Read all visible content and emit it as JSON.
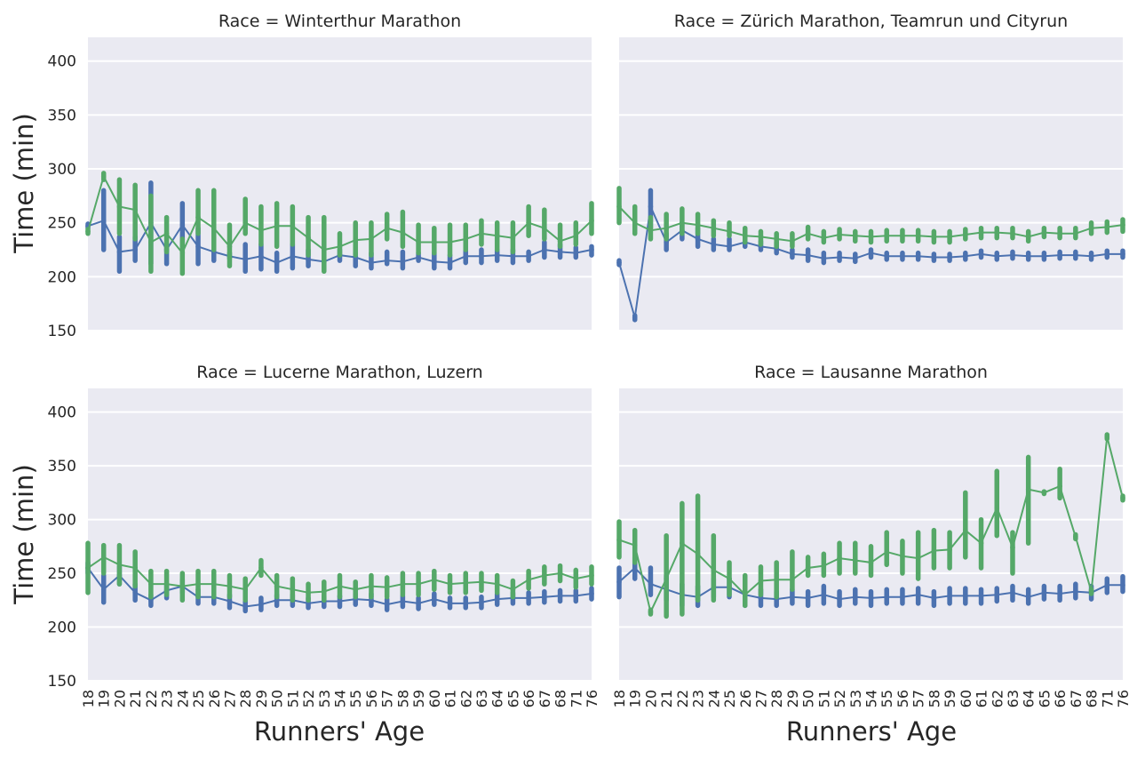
{
  "figure": {
    "ylabel": "Time (min)",
    "xlabel": "Runners' Age",
    "y_ticks": [
      150,
      200,
      250,
      300,
      350,
      400
    ],
    "ylim": [
      150,
      422
    ],
    "grid": true,
    "colors": {
      "panel_bg": "#eaeaf2",
      "grid": "#ffffff",
      "series_a": "#4c72b0",
      "series_b": "#55a868",
      "text": "#262626"
    }
  },
  "chart_data": [
    {
      "type": "line",
      "title": "Race = Winterthur Marathon",
      "ages": [
        "18",
        "19",
        "20",
        "21",
        "22",
        "23",
        "24",
        "25",
        "26",
        "27",
        "28",
        "29",
        "50",
        "51",
        "52",
        "53",
        "54",
        "55",
        "56",
        "57",
        "58",
        "59",
        "60",
        "61",
        "62",
        "63",
        "64",
        "65",
        "66",
        "67",
        "68",
        "71",
        "76"
      ],
      "ylim": [
        150,
        422
      ],
      "series": [
        {
          "color": "#4c72b0",
          "values": [
            247,
            252,
            223,
            225,
            250,
            225,
            248,
            228,
            223,
            219,
            216,
            219,
            213,
            219,
            216,
            214,
            220,
            218,
            213,
            215,
            214,
            218,
            214,
            213,
            219,
            219,
            220,
            219,
            219,
            225,
            223,
            222,
            225
          ],
          "ci_low": [
            245,
            225,
            205,
            215,
            212,
            212,
            228,
            212,
            215,
            217,
            205,
            207,
            205,
            208,
            210,
            213,
            215,
            210,
            208,
            212,
            208,
            215,
            208,
            208,
            213,
            213,
            215,
            213,
            215,
            218,
            218,
            218,
            220
          ],
          "ci_high": [
            249,
            280,
            237,
            237,
            287,
            230,
            268,
            245,
            230,
            222,
            230,
            230,
            222,
            230,
            225,
            215,
            225,
            222,
            222,
            223,
            223,
            222,
            222,
            220,
            225,
            225,
            225,
            225,
            223,
            232,
            230,
            227,
            228
          ]
        },
        {
          "color": "#55a868",
          "values": [
            242,
            293,
            265,
            262,
            232,
            240,
            222,
            255,
            245,
            228,
            250,
            243,
            247,
            247,
            236,
            225,
            228,
            234,
            235,
            245,
            241,
            232,
            232,
            232,
            235,
            240,
            238,
            236,
            250,
            245,
            233,
            238,
            252
          ],
          "ci_low": [
            240,
            290,
            240,
            235,
            205,
            223,
            203,
            240,
            225,
            210,
            240,
            230,
            228,
            230,
            220,
            205,
            220,
            220,
            220,
            235,
            228,
            222,
            222,
            220,
            225,
            230,
            225,
            223,
            238,
            235,
            228,
            230,
            240
          ],
          "ci_high": [
            244,
            296,
            290,
            285,
            275,
            255,
            235,
            280,
            280,
            248,
            272,
            265,
            268,
            265,
            255,
            255,
            240,
            250,
            250,
            258,
            260,
            248,
            245,
            248,
            248,
            252,
            250,
            250,
            265,
            262,
            248,
            250,
            268
          ]
        }
      ]
    },
    {
      "type": "line",
      "title": "Race = Zürich Marathon, Teamrun und Cityrun",
      "ages": [
        "18",
        "19",
        "20",
        "21",
        "22",
        "23",
        "24",
        "25",
        "26",
        "27",
        "28",
        "29",
        "50",
        "51",
        "52",
        "53",
        "54",
        "55",
        "56",
        "57",
        "58",
        "59",
        "60",
        "61",
        "62",
        "63",
        "64",
        "65",
        "66",
        "67",
        "68",
        "71",
        "76"
      ],
      "ylim": [
        150,
        422
      ],
      "series": [
        {
          "color": "#4c72b0",
          "values": [
            213,
            162,
            265,
            232,
            243,
            235,
            230,
            228,
            232,
            228,
            226,
            221,
            220,
            217,
            218,
            217,
            222,
            219,
            219,
            219,
            218,
            218,
            219,
            221,
            219,
            220,
            219,
            219,
            220,
            220,
            219,
            221,
            221
          ],
          "ci_low": [
            211,
            160,
            245,
            225,
            235,
            228,
            225,
            225,
            228,
            225,
            222,
            218,
            215,
            213,
            215,
            214,
            218,
            216,
            216,
            216,
            215,
            215,
            216,
            218,
            216,
            217,
            216,
            216,
            217,
            217,
            216,
            218,
            218
          ],
          "ci_high": [
            215,
            164,
            280,
            240,
            250,
            245,
            235,
            235,
            238,
            233,
            232,
            225,
            225,
            222,
            222,
            221,
            225,
            222,
            222,
            222,
            221,
            221,
            222,
            224,
            222,
            223,
            222,
            222,
            223,
            223,
            222,
            224,
            224
          ]
        },
        {
          "color": "#55a868",
          "values": [
            265,
            250,
            243,
            245,
            250,
            248,
            245,
            242,
            238,
            237,
            235,
            233,
            240,
            236,
            239,
            238,
            237,
            238,
            238,
            238,
            237,
            237,
            239,
            241,
            241,
            240,
            237,
            241,
            240,
            240,
            245,
            246,
            248
          ],
          "ci_low": [
            250,
            240,
            235,
            235,
            240,
            240,
            238,
            238,
            232,
            230,
            228,
            228,
            235,
            232,
            235,
            233,
            232,
            233,
            233,
            233,
            232,
            232,
            235,
            236,
            236,
            236,
            233,
            237,
            236,
            236,
            240,
            241,
            242
          ],
          "ci_high": [
            282,
            265,
            255,
            258,
            263,
            258,
            252,
            250,
            245,
            242,
            240,
            240,
            246,
            242,
            244,
            242,
            242,
            243,
            243,
            243,
            242,
            242,
            244,
            245,
            245,
            245,
            242,
            245,
            245,
            245,
            250,
            251,
            253
          ]
        }
      ]
    },
    {
      "type": "line",
      "title": "Race = Lucerne Marathon, Luzern",
      "ages": [
        "18",
        "19",
        "20",
        "21",
        "22",
        "23",
        "24",
        "25",
        "26",
        "27",
        "28",
        "29",
        "50",
        "51",
        "52",
        "53",
        "54",
        "55",
        "56",
        "57",
        "58",
        "59",
        "60",
        "61",
        "62",
        "63",
        "64",
        "65",
        "66",
        "67",
        "68",
        "71",
        "76"
      ],
      "ylim": [
        150,
        422
      ],
      "series": [
        {
          "color": "#4c72b0",
          "values": [
            255,
            235,
            248,
            232,
            225,
            234,
            238,
            228,
            228,
            224,
            219,
            221,
            225,
            225,
            222,
            224,
            224,
            226,
            225,
            221,
            224,
            222,
            226,
            222,
            222,
            223,
            226,
            227,
            227,
            228,
            229,
            229,
            231
          ],
          "ci_low": [
            250,
            223,
            240,
            225,
            220,
            227,
            232,
            222,
            222,
            218,
            215,
            216,
            220,
            220,
            218,
            219,
            219,
            221,
            220,
            216,
            219,
            217,
            221,
            218,
            218,
            218,
            221,
            222,
            222,
            223,
            224,
            224,
            226
          ],
          "ci_high": [
            260,
            248,
            256,
            240,
            230,
            240,
            244,
            235,
            235,
            230,
            224,
            227,
            230,
            230,
            227,
            229,
            229,
            231,
            231,
            226,
            229,
            227,
            231,
            227,
            227,
            228,
            231,
            232,
            232,
            233,
            234,
            234,
            236
          ]
        },
        {
          "color": "#55a868",
          "values": [
            255,
            265,
            258,
            255,
            240,
            240,
            238,
            240,
            240,
            238,
            235,
            255,
            238,
            235,
            232,
            233,
            238,
            235,
            238,
            237,
            240,
            240,
            244,
            240,
            241,
            242,
            240,
            235,
            244,
            248,
            250,
            245,
            248
          ],
          "ci_low": [
            232,
            250,
            240,
            238,
            228,
            230,
            225,
            228,
            228,
            228,
            225,
            248,
            228,
            225,
            225,
            225,
            228,
            228,
            228,
            228,
            230,
            230,
            235,
            232,
            232,
            234,
            232,
            228,
            236,
            240,
            243,
            237,
            240
          ],
          "ci_high": [
            278,
            276,
            276,
            270,
            252,
            252,
            250,
            252,
            252,
            248,
            245,
            262,
            248,
            245,
            240,
            242,
            248,
            242,
            248,
            246,
            250,
            250,
            252,
            248,
            250,
            250,
            248,
            243,
            252,
            256,
            257,
            253,
            256
          ]
        }
      ]
    },
    {
      "type": "line",
      "title": "Race = Lausanne Marathon",
      "ages": [
        "18",
        "19",
        "20",
        "21",
        "22",
        "23",
        "24",
        "25",
        "26",
        "27",
        "28",
        "29",
        "50",
        "51",
        "52",
        "53",
        "54",
        "55",
        "56",
        "57",
        "58",
        "59",
        "60",
        "61",
        "62",
        "63",
        "64",
        "65",
        "66",
        "67",
        "68",
        "71",
        "76"
      ],
      "ylim": [
        150,
        422
      ],
      "series": [
        {
          "color": "#4c72b0",
          "values": [
            242,
            255,
            240,
            235,
            230,
            228,
            237,
            237,
            230,
            227,
            226,
            228,
            227,
            230,
            226,
            228,
            227,
            228,
            228,
            230,
            227,
            229,
            229,
            229,
            230,
            232,
            228,
            232,
            231,
            233,
            232,
            239,
            239
          ],
          "ci_low": [
            228,
            245,
            230,
            225,
            220,
            220,
            228,
            228,
            220,
            220,
            220,
            222,
            220,
            222,
            220,
            222,
            220,
            222,
            222,
            222,
            220,
            222,
            222,
            222,
            224,
            225,
            222,
            226,
            225,
            227,
            226,
            232,
            233
          ],
          "ci_high": [
            255,
            265,
            255,
            248,
            240,
            238,
            245,
            245,
            240,
            235,
            233,
            235,
            233,
            238,
            233,
            235,
            233,
            235,
            235,
            236,
            233,
            236,
            236,
            235,
            236,
            238,
            235,
            238,
            238,
            240,
            238,
            245,
            247
          ]
        },
        {
          "color": "#55a868",
          "values": [
            281,
            276,
            214,
            245,
            278,
            268,
            253,
            245,
            230,
            243,
            244,
            244,
            255,
            257,
            264,
            262,
            260,
            270,
            266,
            264,
            271,
            272,
            290,
            278,
            311,
            274,
            328,
            325,
            331,
            284,
            233,
            377,
            320
          ],
          "ci_low": [
            265,
            260,
            212,
            210,
            212,
            225,
            225,
            230,
            220,
            230,
            228,
            235,
            248,
            248,
            250,
            250,
            248,
            258,
            250,
            245,
            255,
            255,
            265,
            255,
            285,
            250,
            278,
            324,
            320,
            282,
            231,
            375,
            318
          ],
          "ci_high": [
            298,
            290,
            216,
            285,
            315,
            322,
            285,
            260,
            248,
            256,
            260,
            270,
            265,
            268,
            278,
            278,
            275,
            288,
            280,
            288,
            290,
            288,
            325,
            300,
            345,
            288,
            358,
            326,
            347,
            286,
            235,
            379,
            322
          ]
        }
      ]
    }
  ]
}
